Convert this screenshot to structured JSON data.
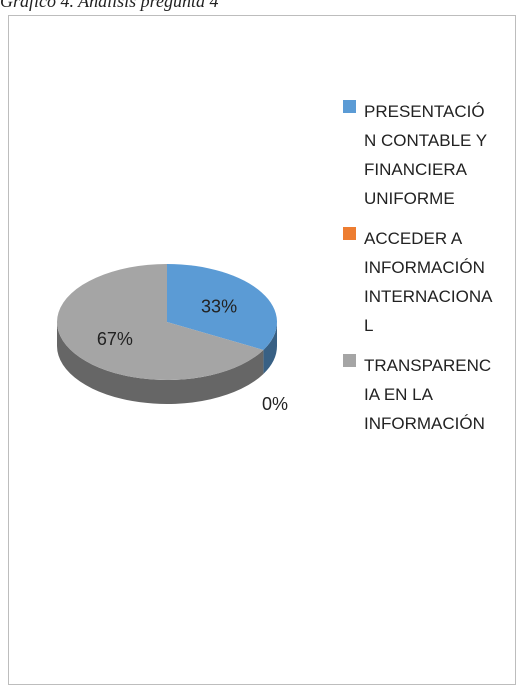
{
  "chart_data": {
    "type": "pie",
    "title": "Gráfico 4. Análisis pregunta 4",
    "categories": [
      "PRESENTACIÓN CONTABLE Y FINANCIERA UNIFORME",
      "ACCEDER A INFORMACIÓN INTERNACIONAL",
      "TRANSPARENCIA EN LA INFORMACIÓN"
    ],
    "values": [
      33,
      0,
      67
    ],
    "value_labels": [
      "33%",
      "0%",
      "67%"
    ],
    "colors": [
      "#5b9bd5",
      "#ed7d31",
      "#a5a5a5"
    ],
    "legend": "right"
  }
}
